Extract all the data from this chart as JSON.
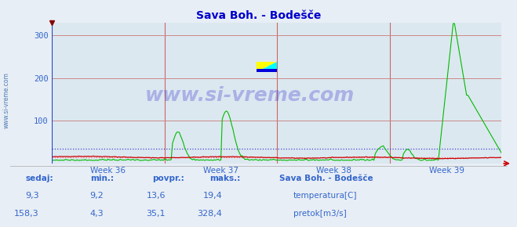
{
  "title": "Sava Boh. - Bodešče",
  "bg_color": "#e8eef5",
  "plot_bg_color": "#dce8f0",
  "grid_color_h": "#cc8888",
  "grid_color_v": "#cc6666",
  "title_color": "#0000cc",
  "axis_label_color": "#3366cc",
  "text_color": "#3366cc",
  "week_labels": [
    "Week 36",
    "Week 37",
    "Week 38",
    "Week 39"
  ],
  "ylim": [
    0,
    330
  ],
  "yticks": [
    100,
    200,
    300
  ],
  "n_points": 336,
  "temp_color": "#cc0000",
  "flow_color": "#00bb00",
  "avg_temp_color": "#ff6666",
  "avg_flow_color": "#3333cc",
  "watermark_text": "www.si-vreme.com",
  "watermark_color": "#3333cc",
  "watermark_alpha": 0.3,
  "sidebar_text": "www.si-vreme.com",
  "sidebar_color": "#3366aa",
  "legend_title": "Sava Boh. - Bodešče",
  "stats_labels": [
    "sedaj:",
    "min.:",
    "povpr.:",
    "maks.:"
  ],
  "temp_stats": [
    9.3,
    9.2,
    13.6,
    19.4
  ],
  "flow_stats": [
    158.3,
    4.3,
    35.1,
    328.4
  ],
  "temp_label": "temperatura[C]",
  "flow_label": "pretok[m3/s]",
  "arrow_color": "#cc0000",
  "left_axis_color": "#2244cc",
  "bottom_axis_color": "#cc0000"
}
